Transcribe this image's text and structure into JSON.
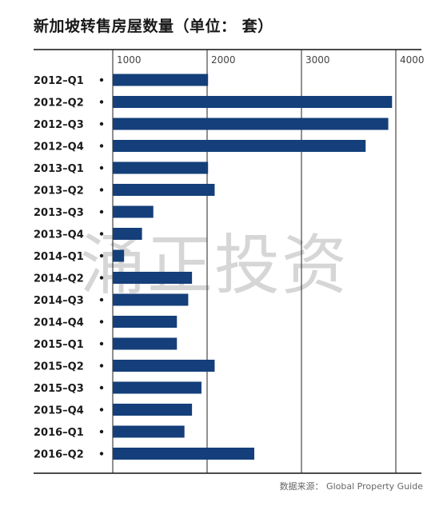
{
  "title": "新加坡转售房屋数量（单位： 套）",
  "source": "数据来源： Global Property Guide",
  "watermark": "涌正投资",
  "colors": {
    "bar": "#143f7a",
    "grid": "#222222",
    "axis": "#111111"
  },
  "chart_data": {
    "type": "bar",
    "orientation": "horizontal",
    "title": "新加坡转售房屋数量（单位： 套）",
    "categories": [
      "2012–Q1",
      "2012–Q2",
      "2012–Q3",
      "2012–Q4",
      "2013–Q1",
      "2013–Q2",
      "2013–Q3",
      "2013–Q4",
      "2014–Q1",
      "2014–Q2",
      "2014–Q3",
      "2014–Q4",
      "2015–Q1",
      "2015–Q2",
      "2015–Q3",
      "2015–Q4",
      "2016–Q1",
      "2016–Q2"
    ],
    "values": [
      2010,
      3960,
      3920,
      3680,
      2010,
      2080,
      1430,
      1310,
      1120,
      1840,
      1800,
      1680,
      1680,
      2080,
      1940,
      1840,
      1760,
      2500
    ],
    "x_ticks": [
      1000,
      2000,
      3000,
      4000
    ],
    "xlim": [
      1000,
      4000
    ],
    "grid": true
  }
}
